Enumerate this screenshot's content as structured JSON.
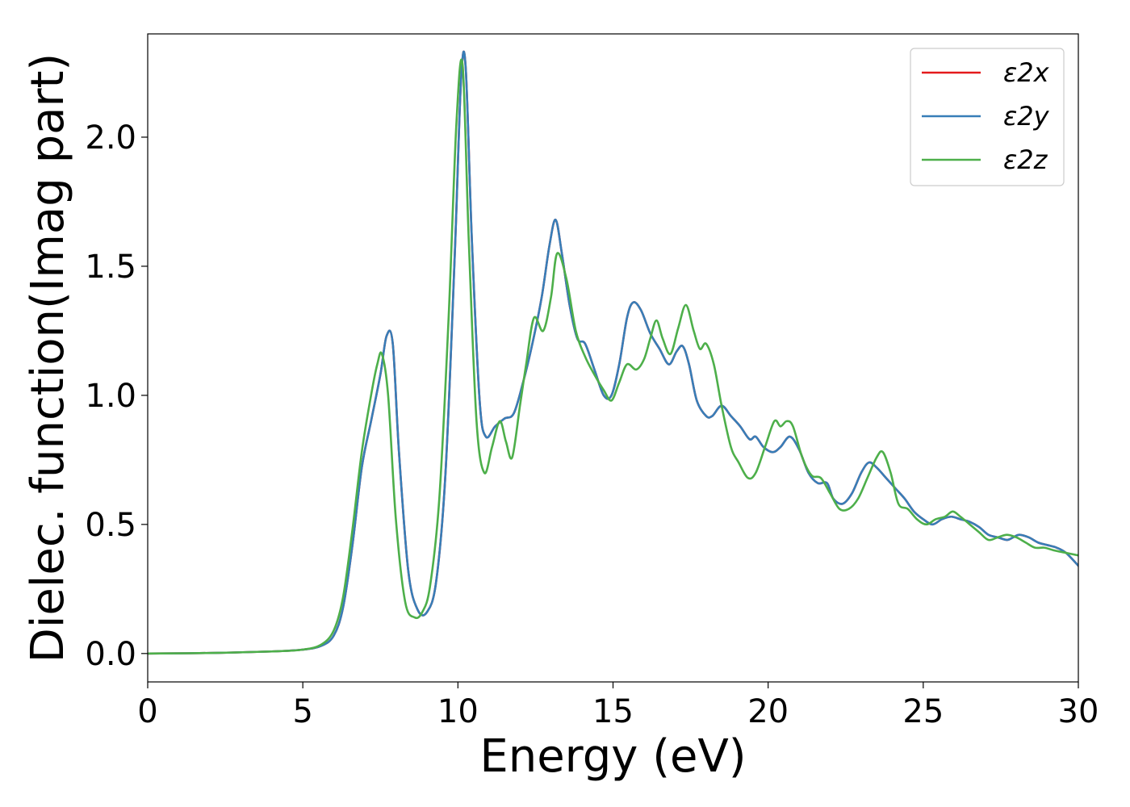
{
  "chart_data": {
    "type": "line",
    "title": "",
    "xlabel": "Energy (eV)",
    "ylabel": "Dielec. function(Imag part)",
    "xlim": [
      0,
      30
    ],
    "ylim": [
      -0.11,
      2.4
    ],
    "xticks": [
      0,
      5,
      10,
      15,
      20,
      25,
      30
    ],
    "yticks": [
      0.0,
      0.5,
      1.0,
      1.5,
      2.0
    ],
    "xtick_labels": [
      "0",
      "5",
      "10",
      "15",
      "20",
      "25",
      "30"
    ],
    "ytick_labels": [
      "0.0",
      "0.5",
      "1.0",
      "1.5",
      "2.0"
    ],
    "grid": false,
    "legend_position": "top-right",
    "series": [
      {
        "name": "ε2x",
        "color": "#e41a1c",
        "x": [
          0,
          2,
          4,
          5,
          5.6,
          6.0,
          6.3,
          6.6,
          6.9,
          7.2,
          7.5,
          7.7,
          7.9,
          8.1,
          8.4,
          8.7,
          9.0,
          9.3,
          9.6,
          9.9,
          10.1,
          10.25,
          10.45,
          10.7,
          10.9,
          11.2,
          11.5,
          11.8,
          12.1,
          12.4,
          12.7,
          12.95,
          13.15,
          13.35,
          13.6,
          13.85,
          14.1,
          14.4,
          14.7,
          14.95,
          15.2,
          15.45,
          15.65,
          15.9,
          16.2,
          16.5,
          16.8,
          17.05,
          17.25,
          17.45,
          17.7,
          18.0,
          18.2,
          18.5,
          18.8,
          19.1,
          19.4,
          19.6,
          19.85,
          20.15,
          20.4,
          20.7,
          21.0,
          21.3,
          21.6,
          21.9,
          22.1,
          22.4,
          22.7,
          23.0,
          23.25,
          23.5,
          23.8,
          24.1,
          24.4,
          24.7,
          25.0,
          25.3,
          25.6,
          25.9,
          26.2,
          26.5,
          26.8,
          27.1,
          27.4,
          27.7,
          27.9,
          28.1,
          28.4,
          28.7,
          29.0,
          29.3,
          29.6,
          30.0
        ],
        "values": [
          0.0,
          0.002,
          0.008,
          0.015,
          0.03,
          0.07,
          0.18,
          0.42,
          0.72,
          0.9,
          1.08,
          1.23,
          1.2,
          0.78,
          0.32,
          0.17,
          0.16,
          0.28,
          0.7,
          1.55,
          2.22,
          2.27,
          1.6,
          0.98,
          0.84,
          0.88,
          0.91,
          0.93,
          1.05,
          1.2,
          1.38,
          1.58,
          1.68,
          1.55,
          1.35,
          1.22,
          1.2,
          1.1,
          1.0,
          1.0,
          1.12,
          1.3,
          1.36,
          1.33,
          1.24,
          1.18,
          1.12,
          1.17,
          1.19,
          1.12,
          0.98,
          0.92,
          0.92,
          0.96,
          0.92,
          0.88,
          0.83,
          0.84,
          0.8,
          0.78,
          0.8,
          0.84,
          0.79,
          0.7,
          0.66,
          0.66,
          0.6,
          0.58,
          0.62,
          0.7,
          0.74,
          0.72,
          0.68,
          0.64,
          0.6,
          0.55,
          0.52,
          0.5,
          0.52,
          0.53,
          0.52,
          0.51,
          0.49,
          0.46,
          0.45,
          0.44,
          0.45,
          0.46,
          0.45,
          0.43,
          0.42,
          0.41,
          0.39,
          0.34
        ]
      },
      {
        "name": "ε2y",
        "color": "#377eb8",
        "x": [
          0,
          2,
          4,
          5,
          5.6,
          6.0,
          6.3,
          6.6,
          6.9,
          7.2,
          7.5,
          7.7,
          7.9,
          8.1,
          8.4,
          8.7,
          9.0,
          9.3,
          9.6,
          9.9,
          10.1,
          10.25,
          10.45,
          10.7,
          10.9,
          11.2,
          11.5,
          11.8,
          12.1,
          12.4,
          12.7,
          12.95,
          13.15,
          13.35,
          13.6,
          13.85,
          14.1,
          14.4,
          14.7,
          14.95,
          15.2,
          15.45,
          15.65,
          15.9,
          16.2,
          16.5,
          16.8,
          17.05,
          17.25,
          17.45,
          17.7,
          18.0,
          18.2,
          18.5,
          18.8,
          19.1,
          19.4,
          19.6,
          19.85,
          20.15,
          20.4,
          20.7,
          21.0,
          21.3,
          21.6,
          21.9,
          22.1,
          22.4,
          22.7,
          23.0,
          23.25,
          23.5,
          23.8,
          24.1,
          24.4,
          24.7,
          25.0,
          25.3,
          25.6,
          25.9,
          26.2,
          26.5,
          26.8,
          27.1,
          27.4,
          27.7,
          27.9,
          28.1,
          28.4,
          28.7,
          29.0,
          29.3,
          29.6,
          30.0
        ],
        "values": [
          0.0,
          0.002,
          0.008,
          0.015,
          0.03,
          0.07,
          0.18,
          0.42,
          0.72,
          0.9,
          1.08,
          1.23,
          1.2,
          0.78,
          0.32,
          0.17,
          0.16,
          0.28,
          0.7,
          1.55,
          2.22,
          2.27,
          1.6,
          0.98,
          0.84,
          0.88,
          0.91,
          0.93,
          1.05,
          1.2,
          1.38,
          1.58,
          1.68,
          1.55,
          1.35,
          1.22,
          1.2,
          1.1,
          1.0,
          1.0,
          1.12,
          1.3,
          1.36,
          1.33,
          1.24,
          1.18,
          1.12,
          1.17,
          1.19,
          1.12,
          0.98,
          0.92,
          0.92,
          0.96,
          0.92,
          0.88,
          0.83,
          0.84,
          0.8,
          0.78,
          0.8,
          0.84,
          0.79,
          0.7,
          0.66,
          0.66,
          0.6,
          0.58,
          0.62,
          0.7,
          0.74,
          0.72,
          0.68,
          0.64,
          0.6,
          0.55,
          0.52,
          0.5,
          0.52,
          0.53,
          0.52,
          0.51,
          0.49,
          0.46,
          0.45,
          0.44,
          0.45,
          0.46,
          0.45,
          0.43,
          0.42,
          0.41,
          0.39,
          0.34
        ]
      },
      {
        "name": "ε2z",
        "color": "#4daf4a",
        "x": [
          0,
          2,
          4,
          5,
          5.6,
          6.0,
          6.3,
          6.6,
          6.9,
          7.2,
          7.4,
          7.55,
          7.75,
          8.0,
          8.3,
          8.6,
          8.85,
          9.1,
          9.4,
          9.7,
          9.95,
          10.15,
          10.35,
          10.6,
          10.85,
          11.1,
          11.35,
          11.55,
          11.75,
          12.0,
          12.2,
          12.45,
          12.75,
          13.0,
          13.2,
          13.5,
          13.8,
          14.1,
          14.4,
          14.7,
          14.95,
          15.2,
          15.45,
          15.75,
          16.0,
          16.2,
          16.4,
          16.6,
          16.85,
          17.1,
          17.35,
          17.6,
          17.8,
          18.0,
          18.25,
          18.5,
          18.8,
          19.05,
          19.35,
          19.6,
          19.9,
          20.2,
          20.4,
          20.6,
          20.8,
          21.1,
          21.4,
          21.7,
          22.0,
          22.3,
          22.6,
          22.9,
          23.2,
          23.5,
          23.7,
          23.95,
          24.2,
          24.5,
          24.8,
          25.1,
          25.4,
          25.7,
          25.95,
          26.2,
          26.5,
          26.8,
          27.1,
          27.4,
          27.7,
          28.0,
          28.3,
          28.6,
          28.9,
          29.2,
          29.6,
          30.0
        ],
        "values": [
          0.0,
          0.002,
          0.008,
          0.015,
          0.035,
          0.09,
          0.22,
          0.48,
          0.78,
          1.0,
          1.12,
          1.16,
          1.0,
          0.52,
          0.2,
          0.14,
          0.16,
          0.26,
          0.6,
          1.3,
          2.05,
          2.28,
          1.6,
          0.9,
          0.7,
          0.8,
          0.9,
          0.82,
          0.76,
          0.96,
          1.12,
          1.3,
          1.25,
          1.38,
          1.55,
          1.45,
          1.25,
          1.15,
          1.08,
          1.02,
          0.98,
          1.05,
          1.12,
          1.1,
          1.14,
          1.22,
          1.29,
          1.22,
          1.16,
          1.26,
          1.35,
          1.25,
          1.18,
          1.2,
          1.12,
          0.96,
          0.8,
          0.74,
          0.68,
          0.7,
          0.8,
          0.9,
          0.88,
          0.9,
          0.88,
          0.76,
          0.69,
          0.68,
          0.62,
          0.56,
          0.56,
          0.6,
          0.68,
          0.76,
          0.78,
          0.7,
          0.58,
          0.56,
          0.52,
          0.5,
          0.52,
          0.53,
          0.55,
          0.53,
          0.5,
          0.47,
          0.44,
          0.45,
          0.46,
          0.45,
          0.43,
          0.41,
          0.41,
          0.4,
          0.39,
          0.38
        ]
      }
    ]
  }
}
